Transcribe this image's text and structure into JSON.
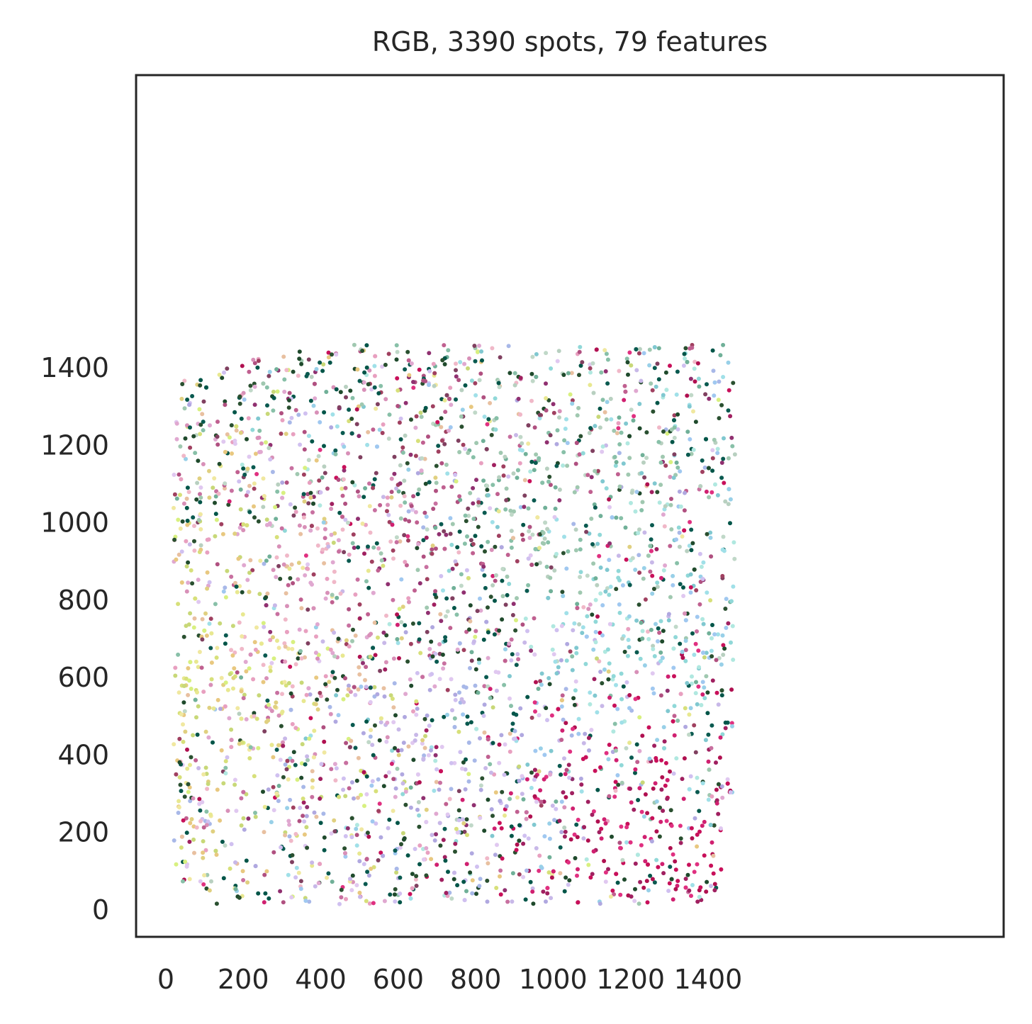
{
  "chart_data": {
    "type": "scatter",
    "title": "RGB, 3390 spots, 79 features",
    "xlabel": "",
    "ylabel": "",
    "xlim": [
      -55,
      1550
    ],
    "ylim": [
      -55,
      1540
    ],
    "xticks": [
      0,
      200,
      400,
      600,
      800,
      1000,
      1200,
      1400
    ],
    "yticks": [
      0,
      200,
      400,
      600,
      800,
      1000,
      1200,
      1400
    ],
    "xtick_labels": [
      "0",
      "200",
      "400",
      "600",
      "800",
      "1000",
      "1200",
      "1400"
    ],
    "ytick_labels": [
      "0",
      "200",
      "400",
      "600",
      "800",
      "1000",
      "1200",
      "1400"
    ],
    "grid": false,
    "legend": "none",
    "n_spots": 3390,
    "n_features": 79,
    "marker_size": 3,
    "spot_extent": {
      "x": [
        20,
        1470
      ],
      "y": [
        15,
        1460
      ]
    },
    "spot_boundary_left": [
      [
        1200,
        480
      ],
      [
        1300,
        300
      ],
      [
        1400,
        280
      ],
      [
        1460,
        370
      ],
      [
        1460,
        1120
      ],
      [
        1470,
        1470
      ]
    ],
    "color_regions": [
      {
        "name": "yellow-green",
        "center": [
          180,
          600
        ],
        "colors": [
          "#d7e07a",
          "#e8e890",
          "#c8d878",
          "#e0d080",
          "#f0e8a0",
          "#d8f080",
          "#e8c880"
        ]
      },
      {
        "name": "pink-salmon",
        "center": [
          450,
          750
        ],
        "colors": [
          "#e8a0c0",
          "#f0b8c8",
          "#d890b8",
          "#e8c0a0",
          "#c870a0",
          "#e0a8d0"
        ]
      },
      {
        "name": "maroon-purple",
        "center": [
          700,
          900
        ],
        "colors": [
          "#a04060",
          "#903070",
          "#b05080",
          "#804060",
          "#c06090"
        ]
      },
      {
        "name": "lavender",
        "center": [
          750,
          500
        ],
        "colors": [
          "#c8b8e8",
          "#b0a8e0",
          "#d0c0f0",
          "#a8b8e8",
          "#e0c8f0"
        ]
      },
      {
        "name": "teal-cyan",
        "center": [
          1150,
          700
        ],
        "colors": [
          "#90d8d8",
          "#a0e0e8",
          "#80c8d0",
          "#b0e8e0",
          "#98d0e8",
          "#a0c8f0"
        ]
      },
      {
        "name": "green-gray",
        "center": [
          950,
          1000
        ],
        "colors": [
          "#88c0a8",
          "#a0c8b0",
          "#b8d0c0",
          "#70b098",
          "#c0d8c8"
        ]
      },
      {
        "name": "magenta",
        "center": [
          1200,
          250
        ],
        "colors": [
          "#c8105a",
          "#d02070",
          "#b01050",
          "#e03080",
          "#a02060"
        ]
      },
      {
        "name": "dark-green",
        "center": [
          800,
          700
        ],
        "colors": [
          "#1f4a2c",
          "#0a5a50",
          "#2a5030",
          "#005548"
        ]
      }
    ]
  }
}
